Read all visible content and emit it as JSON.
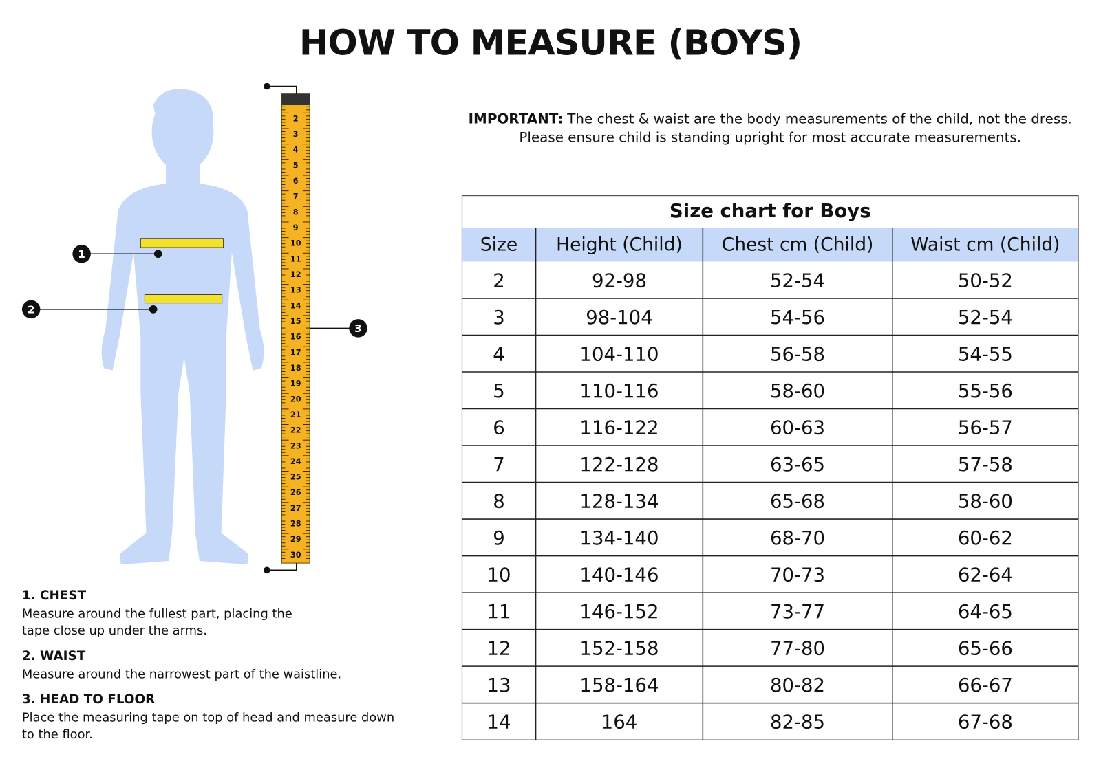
{
  "title": "HOW TO MEASURE (BOYS)",
  "important": {
    "label": "IMPORTANT:",
    "line1": "The chest & waist are the body measurements of the child, not the dress.",
    "line2": "Please ensure child is standing upright for most accurate measurements."
  },
  "table": {
    "title": "Size chart for Boys",
    "headers": [
      "Size",
      "Height (Child)",
      "Chest cm (Child)",
      "Waist cm (Child)"
    ],
    "rows": [
      [
        "2",
        "92-98",
        "52-54",
        "50-52"
      ],
      [
        "3",
        "98-104",
        "54-56",
        "52-54"
      ],
      [
        "4",
        "104-110",
        "56-58",
        "54-55"
      ],
      [
        "5",
        "110-116",
        "58-60",
        "55-56"
      ],
      [
        "6",
        "116-122",
        "60-63",
        "56-57"
      ],
      [
        "7",
        "122-128",
        "63-65",
        "57-58"
      ],
      [
        "8",
        "128-134",
        "65-68",
        "58-60"
      ],
      [
        "9",
        "134-140",
        "68-70",
        "60-62"
      ],
      [
        "10",
        "140-146",
        "70-73",
        "62-64"
      ],
      [
        "11",
        "146-152",
        "73-77",
        "64-65"
      ],
      [
        "12",
        "152-158",
        "77-80",
        "65-66"
      ],
      [
        "13",
        "158-164",
        "80-82",
        "66-67"
      ],
      [
        "14",
        "164",
        "82-85",
        "67-68"
      ]
    ]
  },
  "instructions": [
    {
      "heading": "1. CHEST",
      "lines": [
        "Measure around the fullest part, placing the",
        "tape close up under the arms."
      ]
    },
    {
      "heading": "2. WAIST",
      "lines": [
        "Measure around the narrowest part of the waistline."
      ]
    },
    {
      "heading": "3. HEAD TO FLOOR",
      "lines": [
        "Place the measuring tape on top of head and measure down",
        "to the floor."
      ]
    }
  ],
  "markers": [
    "1",
    "2",
    "3"
  ],
  "tape_labels": [
    "2",
    "3",
    "4",
    "5",
    "6",
    "7",
    "8",
    "9",
    "10",
    "11",
    "12",
    "13",
    "14",
    "15",
    "16",
    "17",
    "18",
    "19",
    "20",
    "21",
    "22",
    "23",
    "24",
    "25",
    "26",
    "27",
    "28",
    "29",
    "30"
  ]
}
